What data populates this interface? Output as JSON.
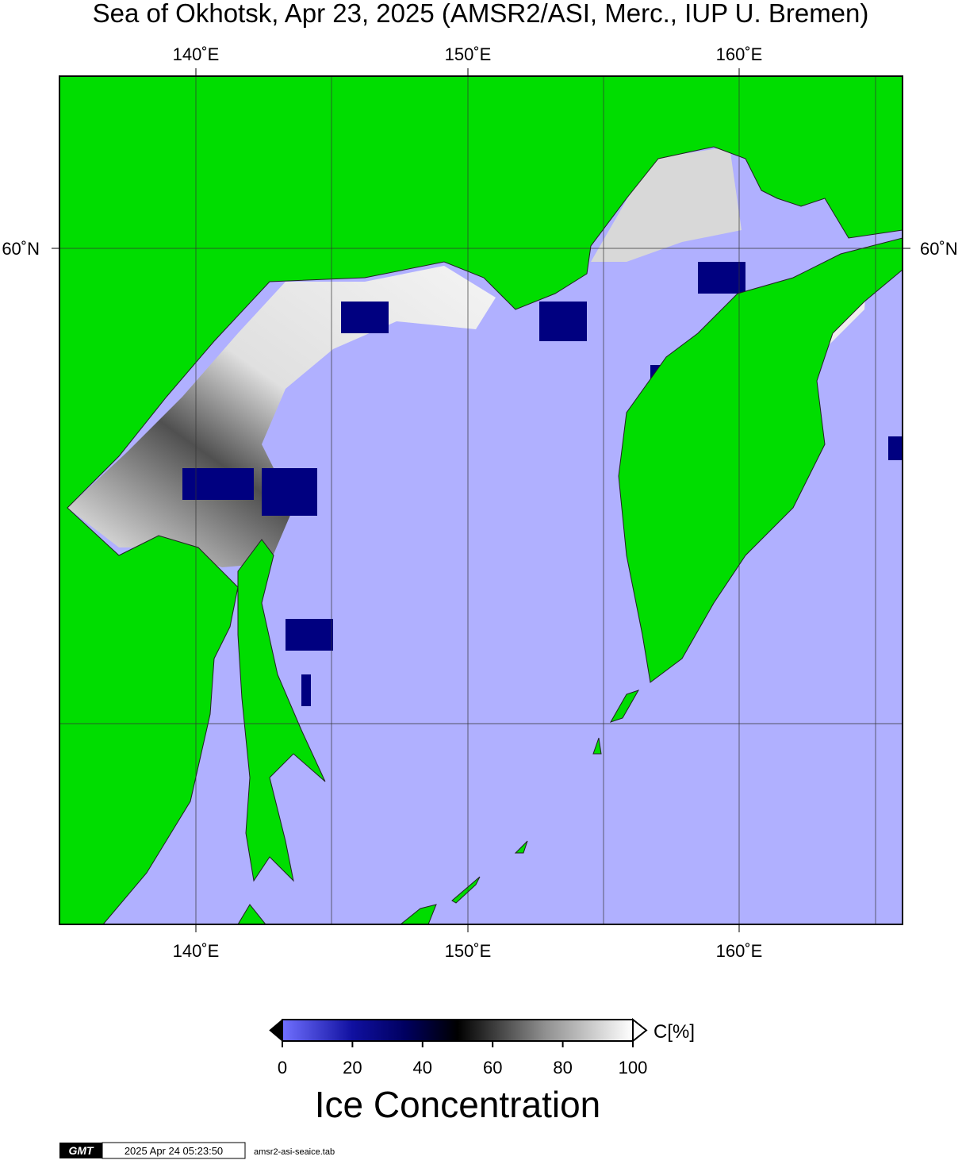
{
  "title": "Sea of Okhotsk, Apr 23, 2025 (AMSR2/ASI, Merc., IUP U. Bremen)",
  "map": {
    "lon_labels": [
      "140˚E",
      "150˚E",
      "160˚E"
    ],
    "lat_labels": [
      "60˚N"
    ]
  },
  "colorbar": {
    "unit": "C[%]",
    "label": "Ice Concentration",
    "range": [
      0,
      100
    ],
    "ticks": [
      0,
      20,
      40,
      60,
      80,
      100
    ]
  },
  "footer": {
    "logo": "GMT",
    "timestamp": "2025 Apr 24 05:23:50",
    "file": "amsr2-asi-seaice.tab"
  }
}
